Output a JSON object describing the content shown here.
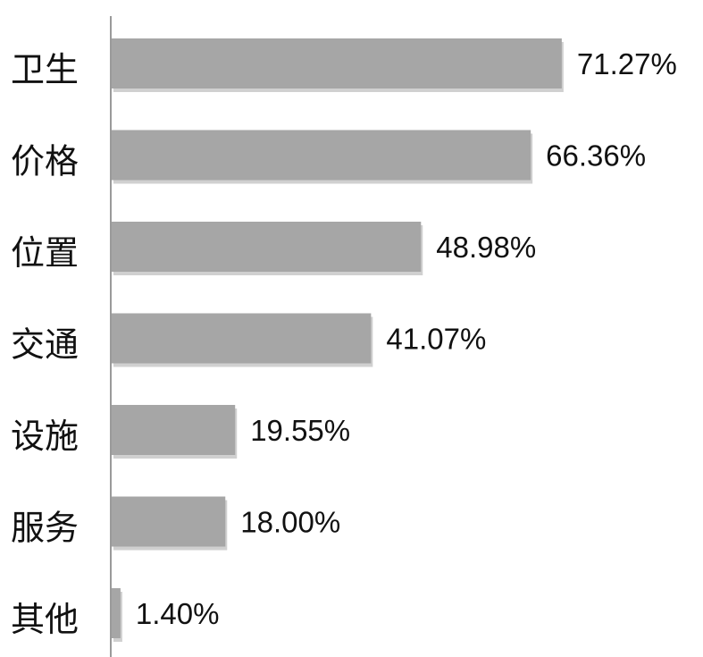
{
  "chart_data": {
    "type": "bar",
    "orientation": "horizontal",
    "categories": [
      "卫生",
      "价格",
      "位置",
      "交通",
      "设施",
      "服务",
      "其他"
    ],
    "values": [
      71.27,
      66.36,
      48.98,
      41.07,
      19.55,
      18.0,
      1.4
    ],
    "value_labels": [
      "71.27%",
      "66.36%",
      "48.98%",
      "41.07%",
      "19.55%",
      "18.00%",
      "1.40%"
    ],
    "xlim": [
      0,
      100
    ],
    "grid": false,
    "legend": "none",
    "colors": {
      "bar": "#a6a6a6",
      "bar_shadow": "#d0d0d0",
      "axis": "#9a9a9a",
      "text": "#111111"
    }
  }
}
